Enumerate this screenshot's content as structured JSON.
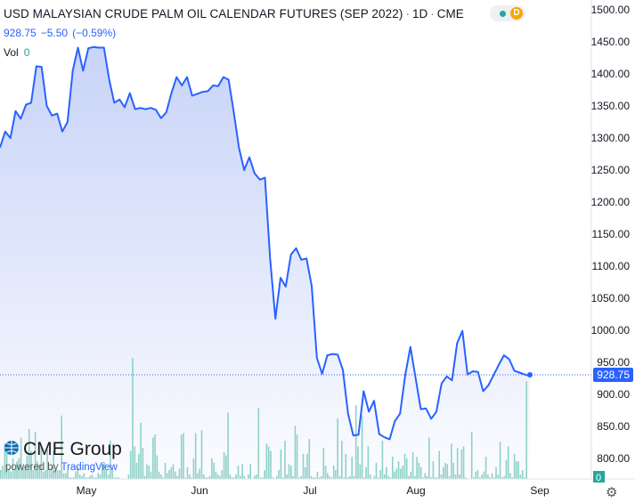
{
  "header": {
    "symbol_title": "USD MALAYSIAN CRUDE PALM OIL CALENDAR FUTURES (SEP 2022)",
    "interval": "1D",
    "exchange": "CME",
    "status_badge": "D"
  },
  "quote": {
    "last": "928.75",
    "change": "−5.50",
    "change_pct": "(−0.59%)"
  },
  "volume": {
    "label": "Vol",
    "value": "0"
  },
  "price_axis": {
    "ticks": [
      "1500.00",
      "1450.00",
      "1400.00",
      "1350.00",
      "1300.00",
      "1250.00",
      "1200.00",
      "1150.00",
      "1100.00",
      "1050.00",
      "1000.00",
      "950.00",
      "900.00",
      "850.00",
      "800.00"
    ],
    "last_label": "928.75",
    "volume_label": "0"
  },
  "time_axis": {
    "labels": [
      "May",
      "Jun",
      "Jul",
      "Aug",
      "Sep"
    ]
  },
  "branding": {
    "logo_text": "CME Group",
    "powered_prefix": "powered by",
    "powered_brand": "TradingView"
  },
  "colors": {
    "line": "#2962ff",
    "area_top": "#c7d3f6",
    "volume_bar": "#8fd1c7",
    "last_price_label": "#2962ff"
  },
  "chart_data": {
    "type": "area",
    "title": "USD MALAYSIAN CRUDE PALM OIL CALENDAR FUTURES (SEP 2022)",
    "xlabel": "",
    "ylabel": "",
    "ylim": [
      780,
      1510
    ],
    "x_tick_labels": [
      "May",
      "Jun",
      "Jul",
      "Aug",
      "Sep"
    ],
    "series": [
      {
        "values": [
          1285,
          1310,
          1300,
          1342,
          1330,
          1352,
          1355,
          1412,
          1411,
          1350,
          1335,
          1338,
          1310,
          1325,
          1405,
          1441,
          1405,
          1440,
          1442,
          1441,
          1441,
          1392,
          1355,
          1360,
          1348,
          1370,
          1345,
          1347,
          1345,
          1347,
          1344,
          1331,
          1340,
          1370,
          1395,
          1382,
          1395,
          1366,
          1369,
          1372,
          1373,
          1382,
          1381,
          1395,
          1391,
          1340,
          1285,
          1250,
          1270,
          1245,
          1235,
          1238,
          1112,
          1018,
          1082,
          1068,
          1118,
          1128,
          1110,
          1112,
          1069,
          957,
          932,
          961,
          963,
          962,
          938,
          870,
          836,
          837,
          905,
          873,
          890,
          838,
          833,
          830,
          858,
          870,
          930,
          974,
          925,
          877,
          878,
          862,
          873,
          917,
          928,
          922,
          980,
          999,
          931,
          936,
          935,
          905,
          914,
          930,
          946,
          961,
          955,
          937,
          934,
          931,
          928.75
        ]
      }
    ],
    "volume": [
      6,
      9,
      24,
      20,
      7,
      5,
      14,
      7,
      12,
      14,
      28,
      8,
      8,
      16,
      34,
      19,
      6,
      32,
      12,
      10,
      22,
      5,
      6,
      20,
      7,
      8,
      19,
      6,
      6,
      6,
      43,
      4,
      4,
      6,
      1,
      1,
      1,
      5,
      8,
      3,
      2,
      4,
      1,
      1,
      2,
      3,
      1,
      1,
      4,
      3,
      10,
      11,
      6,
      3,
      26,
      6,
      1,
      1,
      1,
      0,
      0,
      0,
      0,
      3,
      19,
      82,
      22,
      11,
      17,
      38,
      21,
      2,
      10,
      9,
      5,
      28,
      30,
      16,
      5,
      3,
      1,
      11,
      4,
      6,
      8,
      10,
      5,
      2,
      7,
      30,
      31,
      1,
      8,
      3,
      1,
      14,
      31,
      4,
      7,
      33,
      3,
      1,
      1,
      2,
      14,
      11,
      5,
      3,
      2,
      6,
      18,
      16,
      45,
      3,
      1,
      1,
      3,
      9,
      2,
      10,
      2,
      0,
      3,
      10,
      0,
      2,
      3,
      48,
      1,
      1,
      6,
      24,
      22,
      19,
      1,
      0,
      2,
      6,
      20,
      1,
      26,
      3,
      10,
      9,
      2,
      36,
      30,
      1,
      2,
      17,
      8,
      17,
      27,
      2,
      1,
      1,
      5,
      1,
      2,
      21,
      9,
      4,
      2,
      1,
      9,
      6,
      41,
      2,
      26,
      1,
      17,
      1,
      2,
      15,
      2,
      50,
      22,
      10,
      43,
      1,
      8,
      22,
      3,
      0,
      2,
      11,
      1,
      6,
      26,
      3,
      8,
      2,
      1,
      15,
      5,
      7,
      12,
      7,
      9,
      17,
      14,
      2,
      5,
      18,
      2,
      15,
      11,
      8,
      1,
      4,
      2,
      28,
      1,
      12,
      1,
      1,
      19,
      3,
      8,
      11,
      10,
      2,
      24,
      11,
      3,
      21,
      3,
      20,
      22,
      1,
      0,
      0,
      32,
      1,
      5,
      6,
      1,
      3,
      5,
      15,
      3,
      1,
      4,
      1,
      8,
      3,
      25,
      1,
      2,
      13,
      22,
      4,
      1,
      17,
      12,
      12,
      3,
      6,
      1,
      66,
      0
    ]
  }
}
